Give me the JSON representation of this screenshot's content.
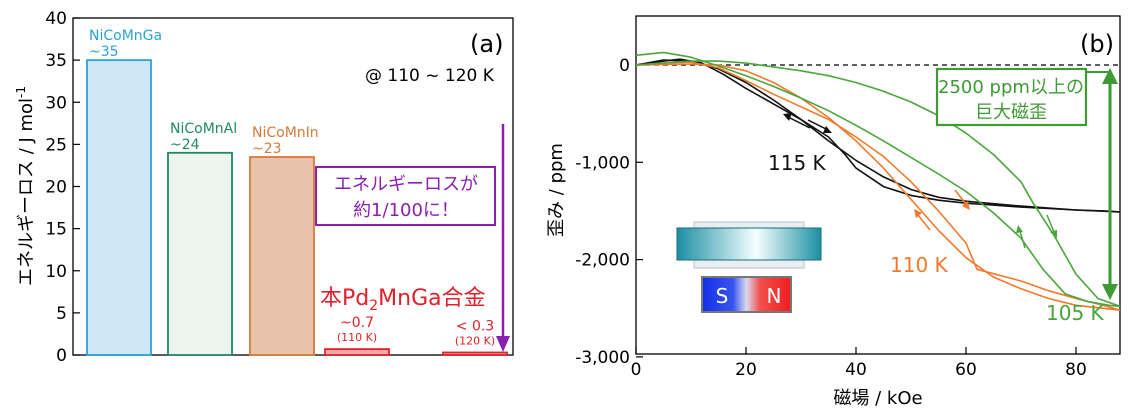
{
  "chart_data": [
    {
      "type": "bar",
      "panel_label": "(a)",
      "ylabel": "エネルギーロス / J mol",
      "ylabel_sup": "-1",
      "ylim": [
        0,
        40
      ],
      "yticks": [
        0,
        5,
        10,
        15,
        20,
        25,
        30,
        35,
        40
      ],
      "condition": "@ 110 ~ 120 K",
      "categories": [
        "NiCoMnGa",
        "NiCoMnAl",
        "NiCoMnIn",
        "Pd2MnGa (110 K)",
        "Pd2MnGa (120 K)"
      ],
      "values": [
        35,
        24,
        23.5,
        0.7,
        0.3
      ],
      "bars": [
        {
          "name": "NiCoMnGa",
          "value_label": "~35",
          "value": 35,
          "color": "#29a3d6",
          "fill": "#cfe6f7"
        },
        {
          "name": "NiCoMnAl",
          "value_label": "~24",
          "value": 24,
          "color": "#1f8a62",
          "fill": "#eef5f1"
        },
        {
          "name": "NiCoMnIn",
          "value_label": "~23",
          "value": 23.5,
          "color": "#d67a3a",
          "fill": "#e8c2aa"
        },
        {
          "name": "",
          "value_label": "~0.7",
          "sub_label": "(110 K)",
          "value": 0.7,
          "color": "#e0202a",
          "fill": "#f2a9a9"
        },
        {
          "name": "",
          "value_label": "< 0.3",
          "sub_label": "(120 K)",
          "value": 0.3,
          "color": "#e0202a",
          "fill": "#f2a9a9"
        }
      ],
      "annotation": {
        "line1": "エネルギーロスが",
        "line2": "約1/100に！",
        "color": "#8a1fb0"
      },
      "highlight": {
        "prefix": "本Pd",
        "sub": "2",
        "suffix": "MnGa合金",
        "color": "#e0202a"
      }
    },
    {
      "type": "line",
      "panel_label": "(b)",
      "xlabel": "磁場 / kOe",
      "ylabel": "歪み / ppm",
      "xlim": [
        0,
        88
      ],
      "ylim": [
        -3000,
        500
      ],
      "xticks": [
        0,
        20,
        40,
        60,
        80
      ],
      "yticks": [
        0,
        -1000,
        -2000,
        -3000
      ],
      "ytick_labels": [
        "0",
        "-1,000",
        "-2,000",
        "-3,000"
      ],
      "series": [
        {
          "name": "115 K",
          "color": "#111111",
          "branch": "increasing",
          "points": [
            [
              0,
              0
            ],
            [
              5,
              40
            ],
            [
              8,
              60
            ],
            [
              12,
              20
            ],
            [
              16,
              -100
            ],
            [
              20,
              -240
            ],
            [
              25,
              -400
            ],
            [
              30,
              -560
            ],
            [
              35,
              -740
            ],
            [
              38,
              -920
            ],
            [
              40,
              -1060
            ],
            [
              45,
              -1250
            ],
            [
              50,
              -1340
            ],
            [
              55,
              -1390
            ],
            [
              60,
              -1420
            ],
            [
              65,
              -1440
            ],
            [
              70,
              -1460
            ],
            [
              75,
              -1475
            ],
            [
              80,
              -1490
            ],
            [
              85,
              -1500
            ],
            [
              88,
              -1510
            ]
          ]
        },
        {
          "name": "",
          "color": "#111111",
          "branch": "decreasing",
          "points": [
            [
              88,
              -1510
            ],
            [
              80,
              -1490
            ],
            [
              70,
              -1450
            ],
            [
              60,
              -1400
            ],
            [
              55,
              -1360
            ],
            [
              50,
              -1280
            ],
            [
              45,
              -1150
            ],
            [
              40,
              -980
            ],
            [
              35,
              -780
            ],
            [
              30,
              -560
            ],
            [
              25,
              -360
            ],
            [
              20,
              -180
            ],
            [
              15,
              -40
            ],
            [
              10,
              40
            ],
            [
              5,
              50
            ],
            [
              0,
              0
            ]
          ]
        },
        {
          "name": "110 K",
          "color": "#f07a2a",
          "branch": "increasing",
          "points": [
            [
              0,
              0
            ],
            [
              5,
              20
            ],
            [
              10,
              30
            ],
            [
              15,
              -30
            ],
            [
              20,
              -160
            ],
            [
              25,
              -300
            ],
            [
              30,
              -430
            ],
            [
              35,
              -560
            ],
            [
              40,
              -740
            ],
            [
              45,
              -940
            ],
            [
              50,
              -1200
            ],
            [
              55,
              -1500
            ],
            [
              60,
              -1830
            ],
            [
              62,
              -2100
            ],
            [
              70,
              -2220
            ],
            [
              75,
              -2320
            ],
            [
              80,
              -2400
            ],
            [
              85,
              -2470
            ],
            [
              88,
              -2520
            ]
          ]
        },
        {
          "name": "",
          "color": "#f07a2a",
          "branch": "decreasing",
          "points": [
            [
              88,
              -2520
            ],
            [
              80,
              -2470
            ],
            [
              75,
              -2400
            ],
            [
              70,
              -2300
            ],
            [
              65,
              -2180
            ],
            [
              60,
              -1980
            ],
            [
              55,
              -1700
            ],
            [
              50,
              -1380
            ],
            [
              45,
              -1060
            ],
            [
              40,
              -780
            ],
            [
              35,
              -540
            ],
            [
              30,
              -340
            ],
            [
              25,
              -180
            ],
            [
              20,
              -60
            ],
            [
              15,
              0
            ],
            [
              10,
              10
            ],
            [
              0,
              0
            ]
          ]
        },
        {
          "name": "105 K",
          "color": "#4aa63c",
          "branch": "increasing",
          "points": [
            [
              0,
              100
            ],
            [
              5,
              130
            ],
            [
              10,
              80
            ],
            [
              15,
              -10
            ],
            [
              20,
              -110
            ],
            [
              25,
              -220
            ],
            [
              30,
              -340
            ],
            [
              35,
              -470
            ],
            [
              40,
              -620
            ],
            [
              45,
              -780
            ],
            [
              50,
              -950
            ],
            [
              55,
              -1120
            ],
            [
              60,
              -1300
            ],
            [
              65,
              -1520
            ],
            [
              70,
              -1780
            ],
            [
              74,
              -2100
            ],
            [
              78,
              -2350
            ],
            [
              82,
              -2430
            ],
            [
              86,
              -2470
            ],
            [
              88,
              -2480
            ]
          ]
        },
        {
          "name": "",
          "color": "#4aa63c",
          "branch": "decreasing",
          "points": [
            [
              88,
              -2480
            ],
            [
              84,
              -2400
            ],
            [
              80,
              -2150
            ],
            [
              76,
              -1750
            ],
            [
              72,
              -1400
            ],
            [
              70,
              -1200
            ],
            [
              65,
              -920
            ],
            [
              60,
              -700
            ],
            [
              55,
              -520
            ],
            [
              50,
              -380
            ],
            [
              45,
              -270
            ],
            [
              40,
              -180
            ],
            [
              35,
              -110
            ],
            [
              30,
              -60
            ],
            [
              25,
              -20
            ],
            [
              20,
              20
            ],
            [
              15,
              40
            ],
            [
              10,
              40
            ],
            [
              0,
              0
            ]
          ]
        }
      ],
      "annotation": {
        "line1": "2500 ppm以上の",
        "line2": "巨大磁歪",
        "color": "#3e9a32"
      },
      "inset_magnet": {
        "s_label": "S",
        "n_label": "N"
      }
    }
  ]
}
